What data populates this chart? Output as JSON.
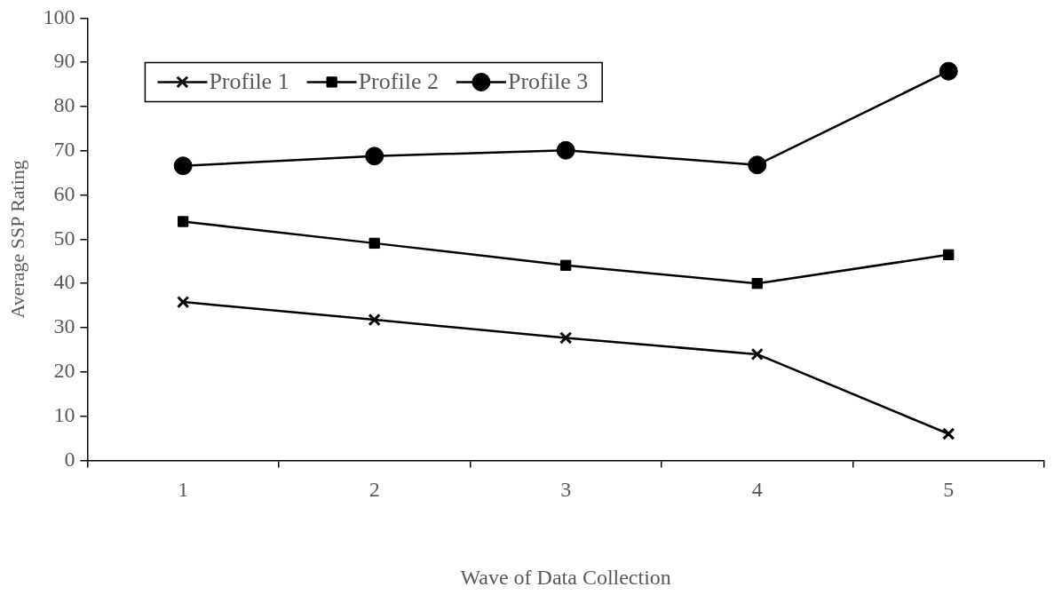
{
  "chart_data": {
    "type": "line",
    "xlabel": "Wave of Data Collection",
    "ylabel": "Average SSP Rating",
    "categories": [
      "1",
      "2",
      "3",
      "4",
      "5"
    ],
    "series": [
      {
        "name": "Profile 1",
        "color": "#000000",
        "marker": "cross",
        "values": [
          35.8,
          31.8,
          27.7,
          24.0,
          6.0
        ]
      },
      {
        "name": "Profile 2",
        "color": "#000000",
        "marker": "square",
        "values": [
          54.0,
          49.1,
          44.1,
          40.0,
          46.5
        ]
      },
      {
        "name": "Profile 3",
        "color": "#000000",
        "marker": "circle",
        "values": [
          66.6,
          68.8,
          70.1,
          66.8,
          88.0
        ]
      }
    ],
    "ylim": [
      0,
      100
    ],
    "yticks": [
      0,
      10,
      20,
      30,
      40,
      50,
      60,
      70,
      80,
      90,
      100
    ],
    "grid": false,
    "legend": "top left",
    "line_style": "solid"
  }
}
